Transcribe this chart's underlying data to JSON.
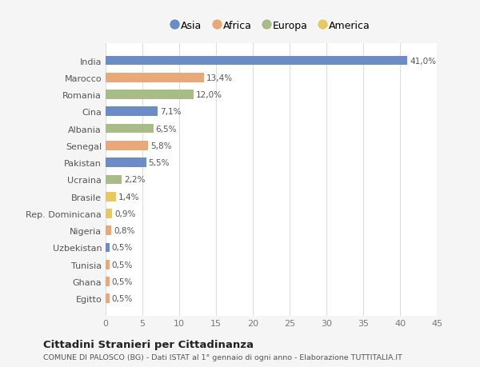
{
  "countries": [
    "India",
    "Marocco",
    "Romania",
    "Cina",
    "Albania",
    "Senegal",
    "Pakistan",
    "Ucraina",
    "Brasile",
    "Rep. Dominicana",
    "Nigeria",
    "Uzbekistan",
    "Tunisia",
    "Ghana",
    "Egitto"
  ],
  "values": [
    41.0,
    13.4,
    12.0,
    7.1,
    6.5,
    5.8,
    5.5,
    2.2,
    1.4,
    0.9,
    0.8,
    0.5,
    0.5,
    0.5,
    0.5
  ],
  "labels": [
    "41,0%",
    "13,4%",
    "12,0%",
    "7,1%",
    "6,5%",
    "5,8%",
    "5,5%",
    "2,2%",
    "1,4%",
    "0,9%",
    "0,8%",
    "0,5%",
    "0,5%",
    "0,5%",
    "0,5%"
  ],
  "continents": [
    "Asia",
    "Africa",
    "Europa",
    "Asia",
    "Europa",
    "Africa",
    "Asia",
    "Europa",
    "America",
    "America",
    "Africa",
    "Asia",
    "Africa",
    "Africa",
    "Africa"
  ],
  "colors": {
    "Asia": "#6b8cc7",
    "Africa": "#e8a878",
    "Europa": "#a8bc88",
    "America": "#e8c860"
  },
  "legend_order": [
    "Asia",
    "Africa",
    "Europa",
    "America"
  ],
  "xlim": [
    0,
    45
  ],
  "xticks": [
    0,
    5,
    10,
    15,
    20,
    25,
    30,
    35,
    40,
    45
  ],
  "title": "Cittadini Stranieri per Cittadinanza",
  "subtitle": "COMUNE DI PALOSCO (BG) - Dati ISTAT al 1° gennaio di ogni anno - Elaborazione TUTTITALIA.IT",
  "bg_color": "#f5f5f5",
  "bar_bg_color": "#ffffff",
  "grid_color": "#dddddd"
}
